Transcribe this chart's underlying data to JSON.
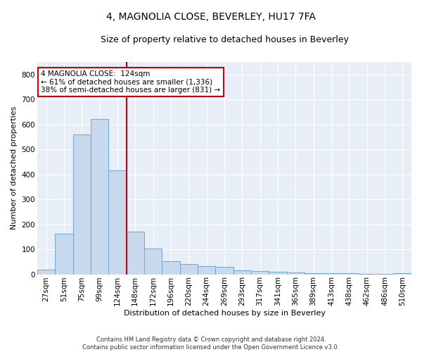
{
  "title_line1": "4, MAGNOLIA CLOSE, BEVERLEY, HU17 7FA",
  "title_line2": "Size of property relative to detached houses in Beverley",
  "xlabel": "Distribution of detached houses by size in Beverley",
  "ylabel": "Number of detached properties",
  "bar_color": "#c8d9ee",
  "bar_edge_color": "#6aaad4",
  "categories": [
    "27sqm",
    "51sqm",
    "75sqm",
    "99sqm",
    "124sqm",
    "148sqm",
    "172sqm",
    "196sqm",
    "220sqm",
    "244sqm",
    "269sqm",
    "293sqm",
    "317sqm",
    "341sqm",
    "365sqm",
    "389sqm",
    "413sqm",
    "438sqm",
    "462sqm",
    "486sqm",
    "510sqm"
  ],
  "values": [
    18,
    163,
    560,
    620,
    415,
    170,
    102,
    52,
    42,
    32,
    30,
    15,
    12,
    10,
    7,
    5,
    5,
    3,
    2,
    1,
    5
  ],
  "property_line_x": 4.5,
  "annotation_line1": "4 MAGNOLIA CLOSE:  124sqm",
  "annotation_line2": "← 61% of detached houses are smaller (1,336)",
  "annotation_line3": "38% of semi-detached houses are larger (831) →",
  "ylim": [
    0,
    850
  ],
  "yticks": [
    0,
    100,
    200,
    300,
    400,
    500,
    600,
    700,
    800
  ],
  "footer_line1": "Contains HM Land Registry data © Crown copyright and database right 2024.",
  "footer_line2": "Contains public sector information licensed under the Open Government Licence v3.0.",
  "background_color": "#e8eef8",
  "grid_color": "#ffffff",
  "fig_bg_color": "#ffffff",
  "title_fontsize": 10,
  "subtitle_fontsize": 9,
  "axis_label_fontsize": 8,
  "tick_fontsize": 7.5,
  "red_line_color": "#cc0000",
  "annotation_fontsize": 7.5
}
